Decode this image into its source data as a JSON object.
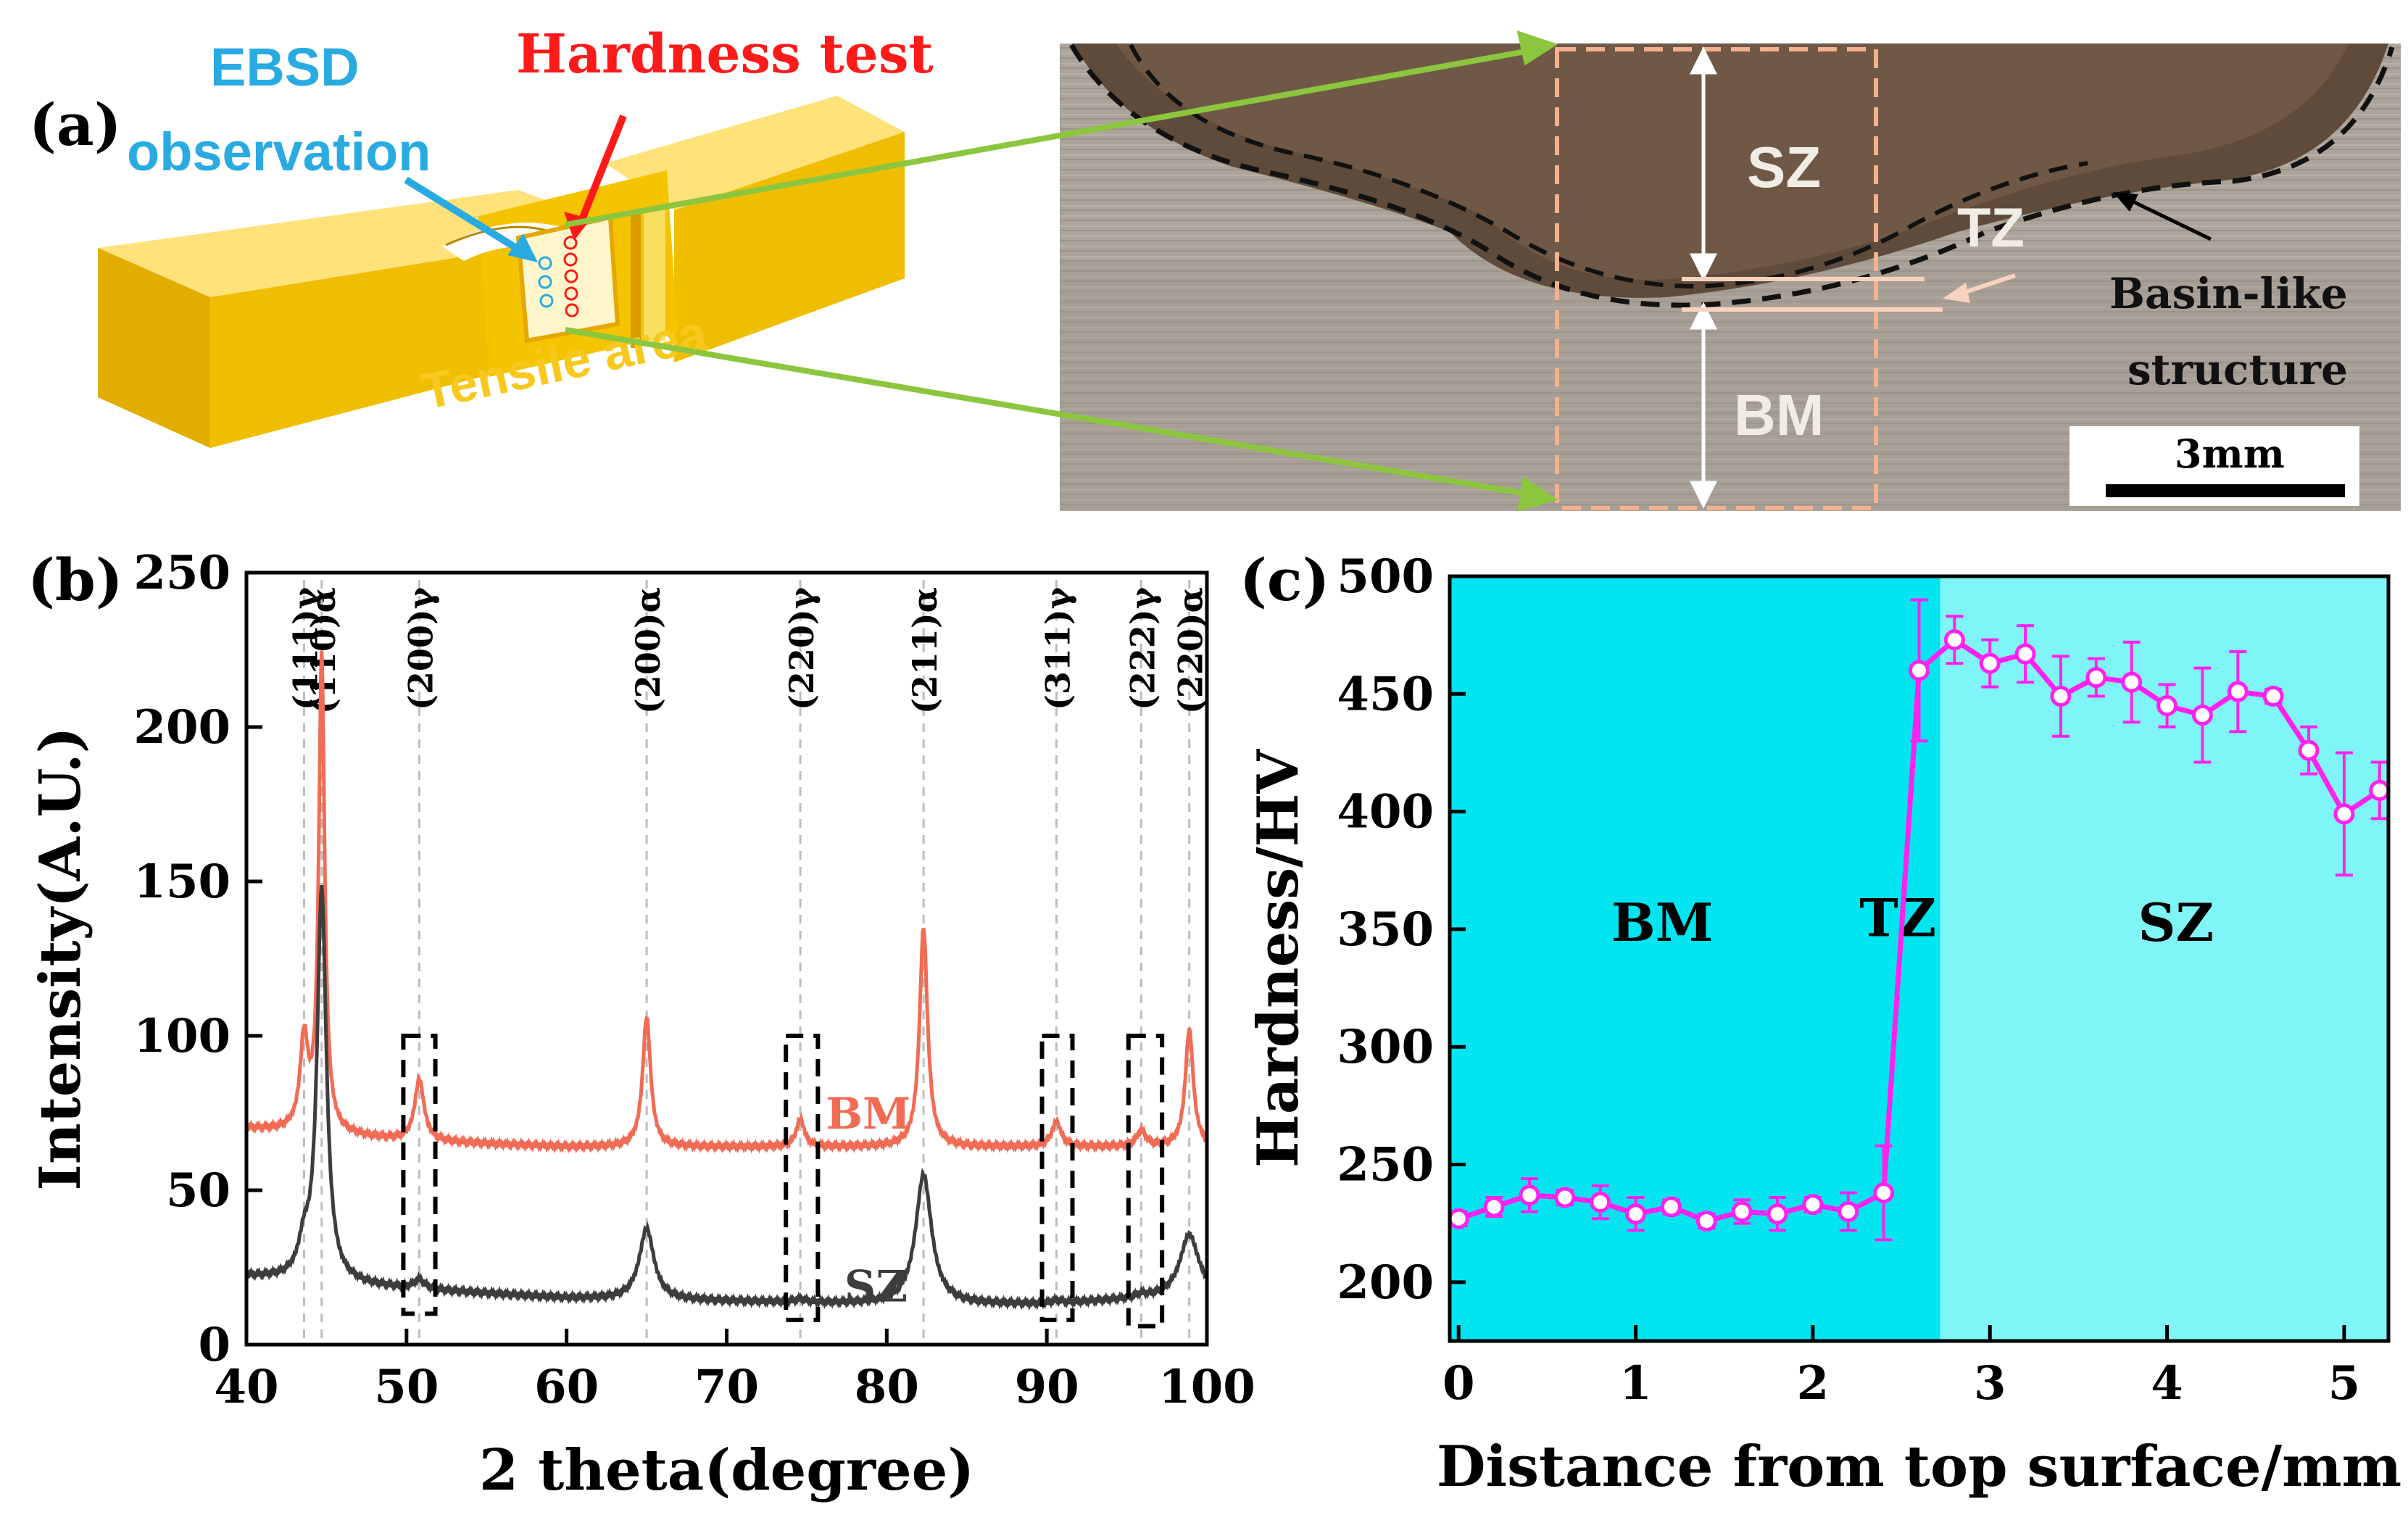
{
  "panel_a": {
    "panel_label": "(a)",
    "ebsd_line1": "EBSD",
    "ebsd_line2": "observation",
    "hardness_test": "Hardness test",
    "tensile_area": "Tensile area",
    "zone_sz": "SZ",
    "zone_tz": "TZ",
    "zone_bm": "BM",
    "basin_line1": "Basin-like",
    "basin_line2": "structure",
    "scale_bar": "3mm",
    "colors": {
      "ebsd": "#29abe2",
      "hardness": "#ff1a1a",
      "tensile": "#f7c81e",
      "arrow": "#8cc63f",
      "block": "#f2c100"
    }
  },
  "chart_data": [
    {
      "id": "b",
      "type": "line",
      "panel_label": "(b)",
      "title": "",
      "xlabel": "2 theta(degree)",
      "ylabel": "Intensity(A.U.)",
      "xlim": [
        40,
        100
      ],
      "ylim": [
        0,
        250
      ],
      "xticks": [
        40,
        50,
        60,
        70,
        80,
        90,
        100
      ],
      "yticks": [
        0,
        50,
        100,
        150,
        200,
        250
      ],
      "peak_labels": [
        {
          "label": "(111)γ",
          "x": 43.6
        },
        {
          "label": "(110)α",
          "x": 44.7
        },
        {
          "label": "(200)γ",
          "x": 50.8
        },
        {
          "label": "(200)α",
          "x": 65.0
        },
        {
          "label": "(220)γ",
          "x": 74.6
        },
        {
          "label": "(211)α",
          "x": 82.3
        },
        {
          "label": "(311)γ",
          "x": 90.6
        },
        {
          "label": "(222)γ",
          "x": 95.9
        },
        {
          "label": "(220)α",
          "x": 98.9
        }
      ],
      "series": [
        {
          "name": "BM",
          "color": "#f26b55",
          "baseline": [
            [
              40,
              70
            ],
            [
              50,
              66
            ],
            [
              60,
              64
            ],
            [
              80,
              64
            ],
            [
              100,
              64
            ]
          ],
          "peaks": [
            [
              43.6,
              29,
              0.3
            ],
            [
              44.7,
              154,
              0.22
            ],
            [
              50.8,
              20,
              0.35
            ],
            [
              65.0,
              42,
              0.3
            ],
            [
              74.6,
              9,
              0.3
            ],
            [
              82.3,
              71,
              0.3
            ],
            [
              90.6,
              8,
              0.35
            ],
            [
              95.9,
              5,
              0.35
            ],
            [
              98.9,
              38,
              0.3
            ]
          ]
        },
        {
          "name": "SZ",
          "color": "#3d3d3d",
          "baseline": [
            [
              40,
              22
            ],
            [
              50,
              18
            ],
            [
              60,
              15
            ],
            [
              80,
              13
            ],
            [
              90,
              13
            ],
            [
              100,
              16
            ]
          ],
          "peaks": [
            [
              43.6,
              10,
              0.4
            ],
            [
              44.7,
              127,
              0.35
            ],
            [
              50.8,
              3,
              0.4
            ],
            [
              65.0,
              23,
              0.55
            ],
            [
              74.6,
              1,
              0.4
            ],
            [
              82.3,
              42,
              0.6
            ],
            [
              90.6,
              1,
              0.4
            ],
            [
              95.9,
              1,
              0.4
            ],
            [
              98.9,
              20,
              0.7
            ]
          ]
        }
      ],
      "boxes": [
        [
          49.8,
          51.8,
          10,
          100
        ],
        [
          73.7,
          75.7,
          8,
          100
        ],
        [
          89.7,
          91.6,
          8,
          100
        ],
        [
          95.1,
          97.2,
          6,
          100
        ]
      ]
    },
    {
      "id": "c",
      "type": "line",
      "panel_label": "(c)",
      "title": "",
      "xlabel": "Distance from top surface/mm",
      "ylabel": "Hardness/HV",
      "xlim": [
        -0.05,
        5.25
      ],
      "ylim": [
        175,
        500
      ],
      "xticks": [
        0,
        1,
        2,
        3,
        4,
        5
      ],
      "yticks": [
        200,
        250,
        300,
        350,
        400,
        450,
        500
      ],
      "regions": [
        {
          "label": "BM",
          "x0": -0.05,
          "x1": 2.72,
          "color": "#00e5f0",
          "label_x": 1.15,
          "label_y": 345
        },
        {
          "label": "SZ",
          "x0": 2.72,
          "x1": 5.25,
          "color": "#80f5f8",
          "label_x": 4.05,
          "label_y": 345
        }
      ],
      "extra_labels": [
        {
          "label": "TZ",
          "x": 2.48,
          "y": 347
        }
      ],
      "series": [
        {
          "name": "Hardness",
          "color": "#ff22ee",
          "x": [
            0,
            0.2,
            0.4,
            0.6,
            0.8,
            1.0,
            1.2,
            1.4,
            1.6,
            1.8,
            2.0,
            2.2,
            2.4,
            2.6,
            2.8,
            3.0,
            3.2,
            3.4,
            3.6,
            3.8,
            4.0,
            4.2,
            4.4,
            4.6,
            4.8,
            5.0,
            5.2
          ],
          "y": [
            227,
            232,
            237,
            236,
            234,
            229,
            232,
            226,
            230,
            229,
            233,
            230,
            238,
            460,
            473,
            463,
            467,
            449,
            457,
            455,
            445,
            441,
            451,
            449,
            426,
            399,
            409
          ],
          "err": [
            3,
            4,
            7,
            3,
            7,
            7,
            3,
            3,
            5,
            7,
            3,
            8,
            20,
            30,
            10,
            10,
            12,
            17,
            8,
            17,
            9,
            20,
            17,
            3,
            10,
            26,
            12
          ]
        }
      ]
    }
  ]
}
